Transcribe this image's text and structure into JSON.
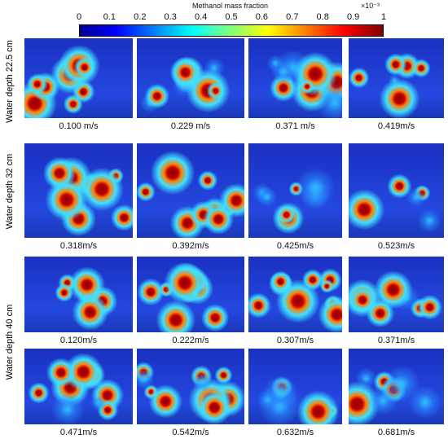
{
  "colorbar": {
    "title": "Methanol mass fraction",
    "exponent": "×10⁻³",
    "ticks": [
      "0",
      "0.1",
      "0.2",
      "0.3",
      "0.4",
      "0.5",
      "0.6",
      "0.7",
      "0.8",
      "0.9",
      "1"
    ]
  },
  "rows": [
    {
      "label": "Water depth 22.5 cm",
      "panels": [
        "0.100 m/s",
        "0.229 m/s",
        "0.371 m/s",
        "0.419m/s"
      ]
    },
    {
      "label": "Water depth 32 cm",
      "panels": [
        "0.318m/s",
        "0.392m/s",
        "0.425m/s",
        "0.523m/s"
      ]
    },
    {
      "label": "Water depth 40 cm",
      "panels": [
        "0.120m/s",
        "0.222m/s",
        "0.307m/s",
        "0.371m/s",
        "0.471m/s",
        "0.542m/s",
        "0.632m/s",
        "0.681m/s"
      ]
    }
  ]
}
